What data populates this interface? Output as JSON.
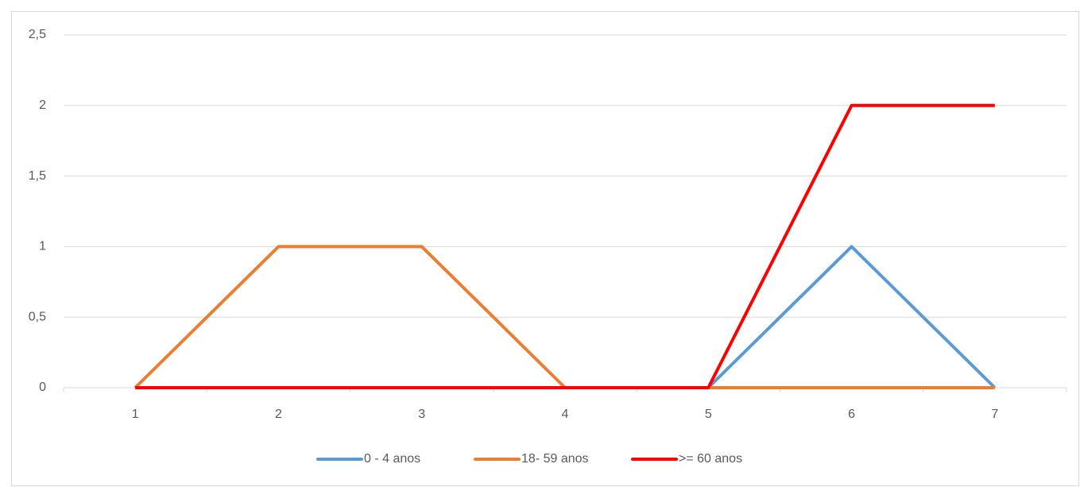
{
  "chart_data": {
    "type": "line",
    "categories": [
      "1",
      "2",
      "3",
      "4",
      "5",
      "6",
      "7"
    ],
    "series": [
      {
        "name": "0 - 4 anos",
        "color": "#5b9bd5",
        "values": [
          0,
          0,
          0,
          0,
          0,
          1,
          0
        ]
      },
      {
        "name": "18- 59 anos",
        "color": "#ed7d31",
        "values": [
          0,
          1,
          1,
          0,
          0,
          0,
          0
        ]
      },
      {
        "name": ">= 60 anos",
        "color": "#ff0000",
        "values": [
          0,
          0,
          0,
          0,
          0,
          2,
          2
        ]
      }
    ],
    "ylim": [
      0,
      2.5
    ],
    "yticks": [
      0,
      {
        "value": 0.5,
        "label": "0,5"
      },
      1,
      {
        "value": 1.5,
        "label": "1,5"
      },
      2,
      {
        "value": 2.5,
        "label": "2,5"
      }
    ],
    "grid": true,
    "legend": "bottom"
  }
}
